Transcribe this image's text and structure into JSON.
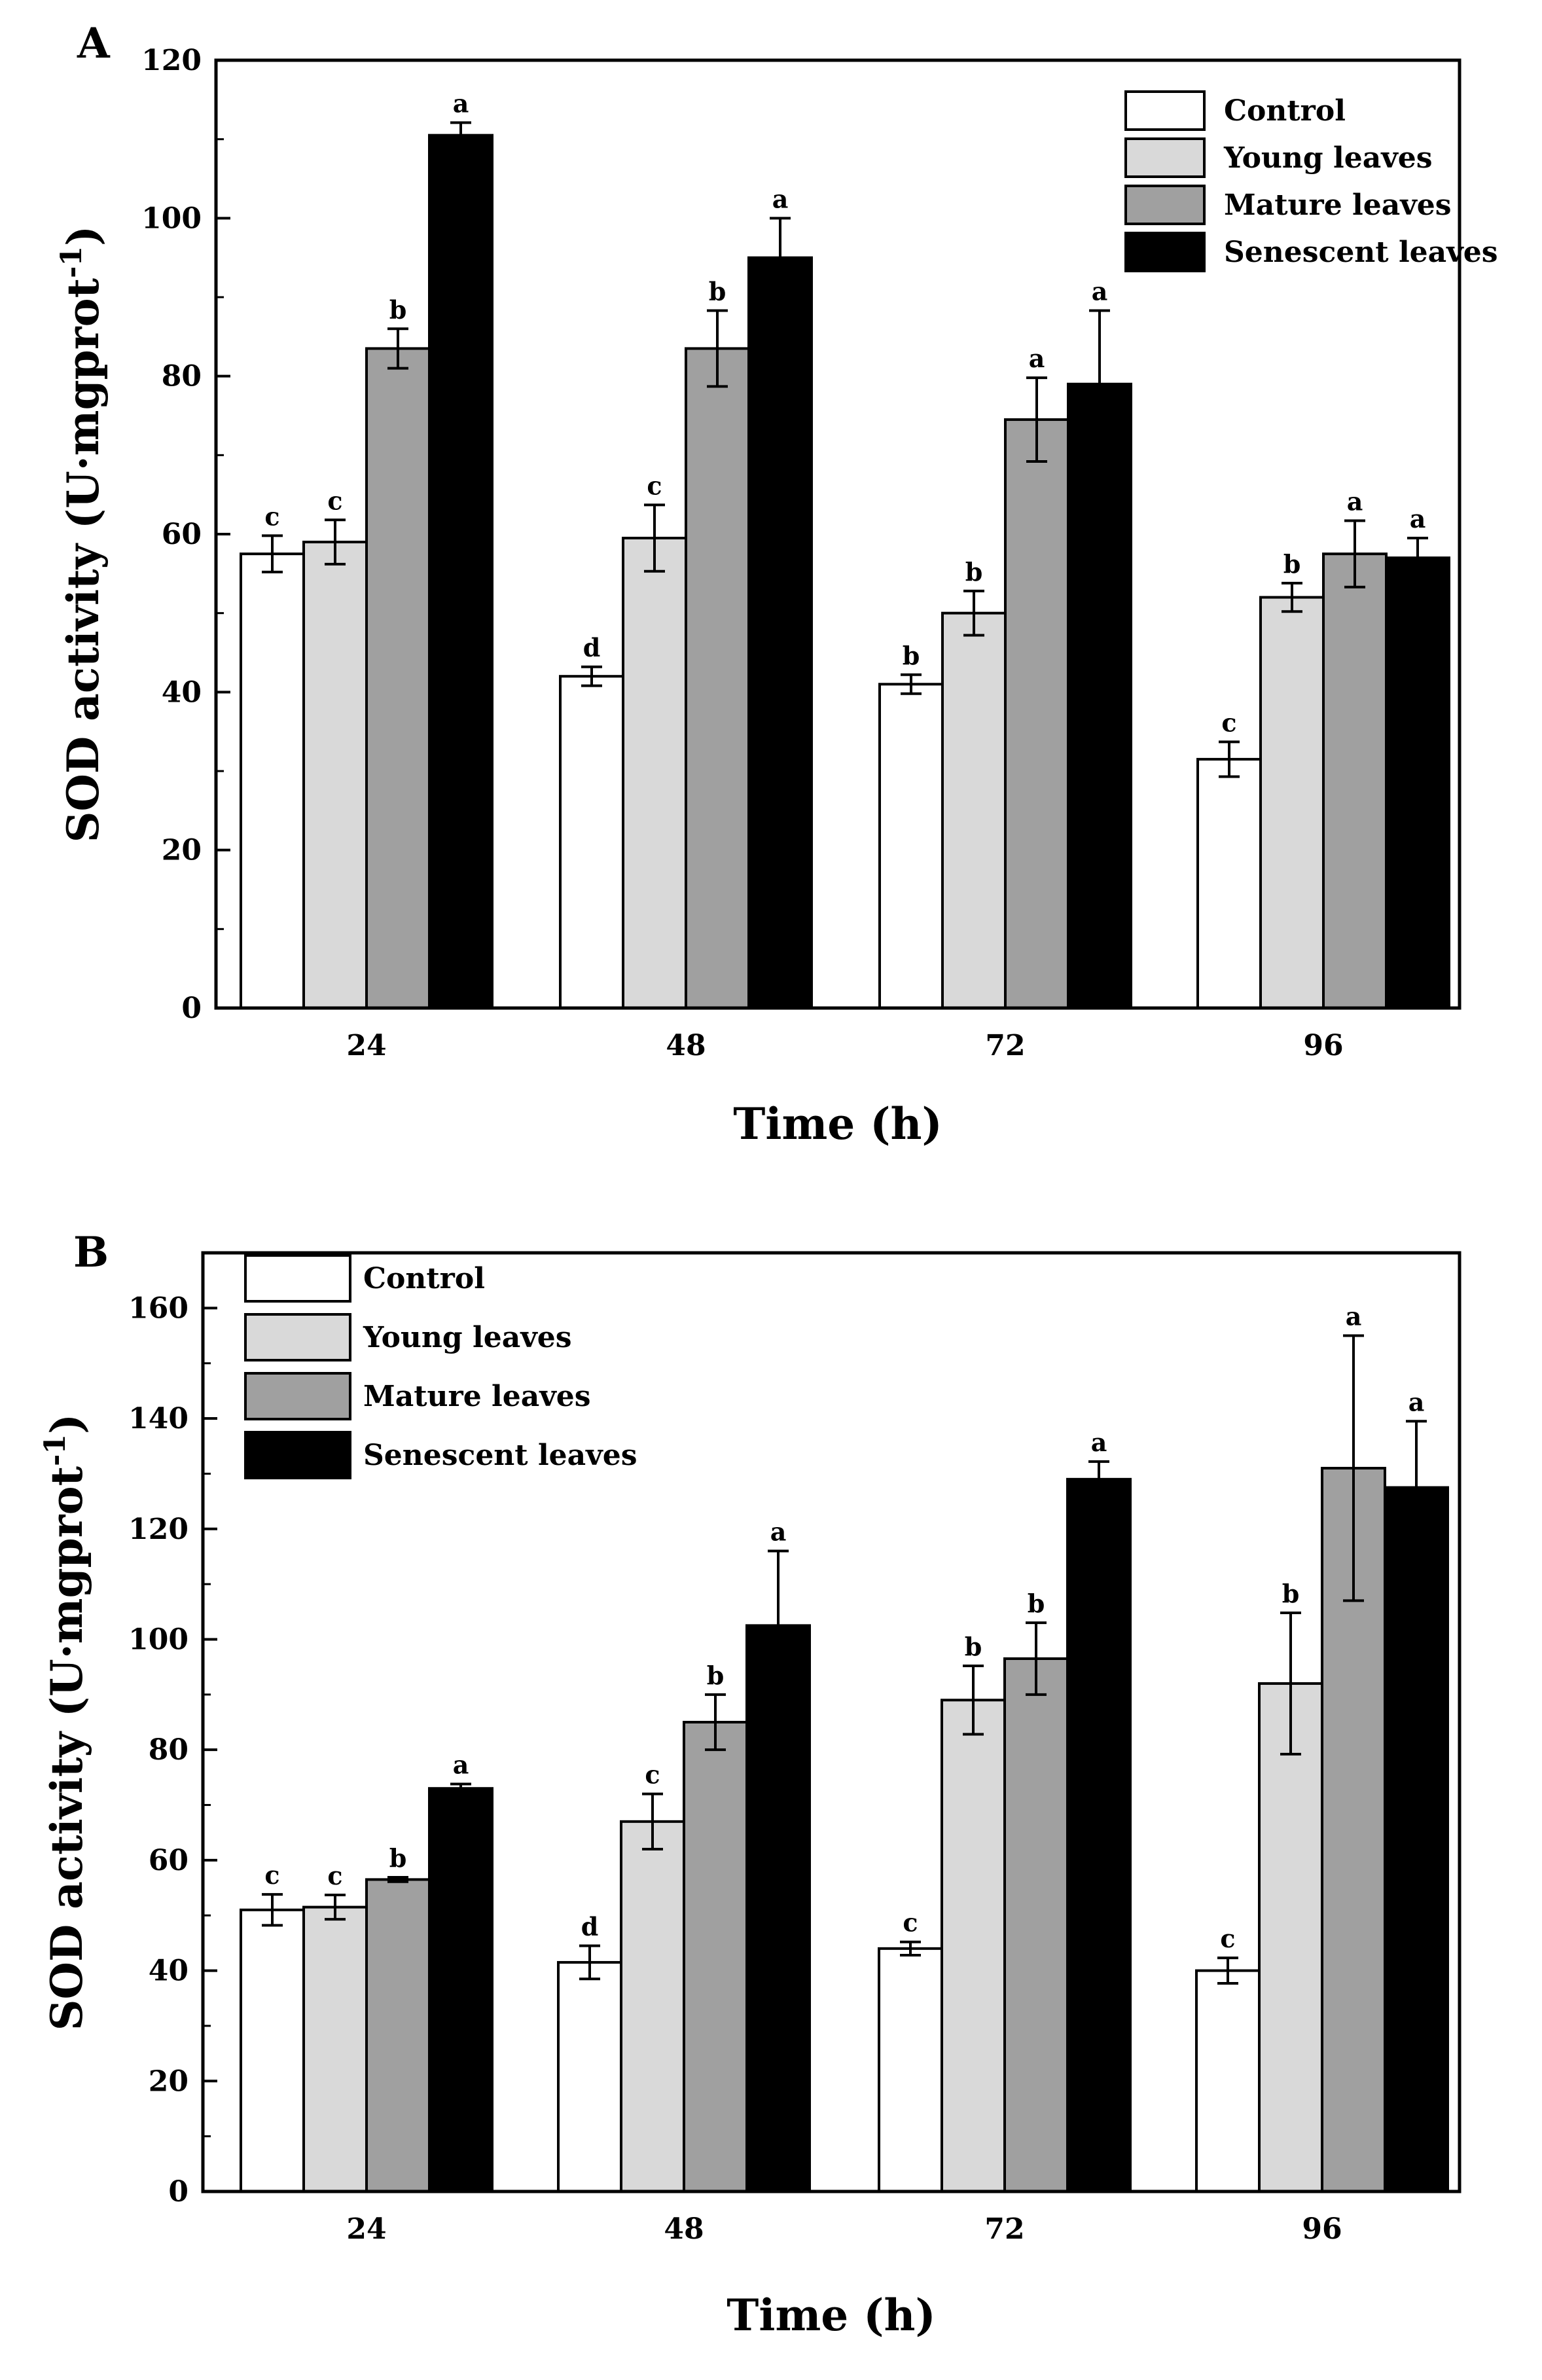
{
  "figure": {
    "panels": [
      "A",
      "B"
    ]
  },
  "chart_data": [
    {
      "panel": "A",
      "type": "bar",
      "categories": [
        "24",
        "48",
        "72",
        "96"
      ],
      "xlabel": "Time (h)",
      "ylabel_main": "SOD activity (U·mgprot",
      "ylabel_sup": "-1",
      "ylabel_end": ")",
      "ylim": [
        0,
        120
      ],
      "yticks": [
        0,
        20,
        40,
        60,
        80,
        100,
        120
      ],
      "legend_position": "top-right",
      "series": [
        {
          "name": "Control",
          "color": "#ffffff",
          "values": [
            57.5,
            42,
            41,
            31.5
          ],
          "errors": [
            2.3,
            1.2,
            1.2,
            2.2
          ],
          "letters": [
            "c",
            "d",
            "b",
            "c"
          ]
        },
        {
          "name": "Young leaves",
          "color": "#d9d9d9",
          "values": [
            59,
            59.5,
            50,
            52
          ],
          "errors": [
            2.8,
            4.2,
            2.8,
            1.8
          ],
          "letters": [
            "c",
            "c",
            "b",
            "b"
          ]
        },
        {
          "name": "Mature leaves",
          "color": "#a0a0a0",
          "values": [
            83.5,
            83.5,
            74.5,
            57.5
          ],
          "errors": [
            2.5,
            4.8,
            5.3,
            4.2
          ],
          "letters": [
            "b",
            "b",
            "a",
            "a"
          ]
        },
        {
          "name": "Senescent leaves",
          "color": "#000000",
          "values": [
            110.5,
            95,
            79,
            57
          ],
          "errors": [
            1.6,
            5,
            9.3,
            2.5
          ],
          "letters": [
            "a",
            "a",
            "a",
            "a"
          ]
        }
      ]
    },
    {
      "panel": "B",
      "type": "bar",
      "categories": [
        "24",
        "48",
        "72",
        "96"
      ],
      "xlabel": "Time (h)",
      "ylabel_main": "SOD activity (U·mgprot",
      "ylabel_sup": "-1",
      "ylabel_end": ")",
      "ylim": [
        0,
        170
      ],
      "yticks": [
        0,
        20,
        40,
        60,
        80,
        100,
        120,
        140,
        160
      ],
      "legend_position": "top-left",
      "series": [
        {
          "name": "Control",
          "color": "#ffffff",
          "values": [
            51,
            41.5,
            44,
            40
          ],
          "errors": [
            2.8,
            3,
            1.2,
            2.3
          ],
          "letters": [
            "c",
            "d",
            "c",
            "c"
          ]
        },
        {
          "name": "Young leaves",
          "color": "#d9d9d9",
          "values": [
            51.5,
            67,
            89,
            92
          ],
          "errors": [
            2.2,
            5,
            6.2,
            12.8
          ],
          "letters": [
            "c",
            "c",
            "b",
            "b"
          ]
        },
        {
          "name": "Mature leaves",
          "color": "#a0a0a0",
          "values": [
            56.5,
            85,
            96.5,
            131
          ],
          "errors": [
            0.4,
            5,
            6.5,
            24
          ],
          "letters": [
            "b",
            "b",
            "b",
            "a"
          ]
        },
        {
          "name": "Senescent leaves",
          "color": "#000000",
          "values": [
            73,
            102.5,
            129,
            127.5
          ],
          "errors": [
            0.8,
            13.5,
            3.2,
            12
          ],
          "letters": [
            "a",
            "a",
            "a",
            "a"
          ]
        }
      ]
    }
  ]
}
